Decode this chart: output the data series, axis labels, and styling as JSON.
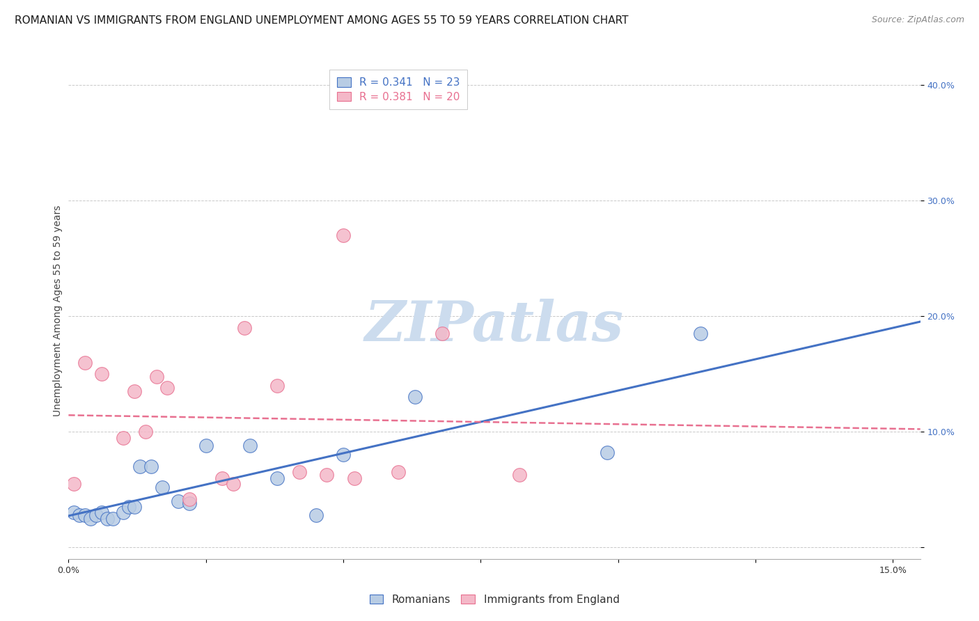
{
  "title": "ROMANIAN VS IMMIGRANTS FROM ENGLAND UNEMPLOYMENT AMONG AGES 55 TO 59 YEARS CORRELATION CHART",
  "source": "Source: ZipAtlas.com",
  "ylabel": "Unemployment Among Ages 55 to 59 years",
  "xlim": [
    0.0,
    0.155
  ],
  "ylim": [
    -0.01,
    0.42
  ],
  "xticks": [
    0.0,
    0.025,
    0.05,
    0.075,
    0.1,
    0.125,
    0.15
  ],
  "yticks": [
    0.0,
    0.1,
    0.2,
    0.3,
    0.4
  ],
  "romanians_x": [
    0.001,
    0.002,
    0.003,
    0.004,
    0.005,
    0.006,
    0.007,
    0.008,
    0.01,
    0.011,
    0.012,
    0.013,
    0.015,
    0.017,
    0.02,
    0.022,
    0.025,
    0.033,
    0.038,
    0.045,
    0.05,
    0.063,
    0.098,
    0.115
  ],
  "romanians_y": [
    0.03,
    0.028,
    0.028,
    0.025,
    0.028,
    0.03,
    0.025,
    0.025,
    0.03,
    0.035,
    0.035,
    0.07,
    0.07,
    0.052,
    0.04,
    0.038,
    0.088,
    0.088,
    0.06,
    0.028,
    0.08,
    0.13,
    0.082,
    0.185
  ],
  "england_x": [
    0.001,
    0.003,
    0.006,
    0.01,
    0.012,
    0.014,
    0.016,
    0.018,
    0.022,
    0.028,
    0.03,
    0.032,
    0.038,
    0.042,
    0.047,
    0.05,
    0.052,
    0.06,
    0.068,
    0.082
  ],
  "england_y": [
    0.055,
    0.16,
    0.15,
    0.095,
    0.135,
    0.1,
    0.148,
    0.138,
    0.042,
    0.06,
    0.055,
    0.19,
    0.14,
    0.065,
    0.063,
    0.27,
    0.06,
    0.065,
    0.185,
    0.063
  ],
  "blue_line_color": "#4472c4",
  "pink_line_color": "#e87090",
  "blue_marker_face": "#b8cce4",
  "blue_marker_edge": "#4472c4",
  "pink_marker_face": "#f4b8c8",
  "pink_marker_edge": "#e87090",
  "tick_color_y": "#4472c4",
  "tick_color_x": "#333333",
  "watermark_color": "#ccdcee",
  "title_fontsize": 11,
  "source_fontsize": 9,
  "axis_label_fontsize": 10,
  "tick_fontsize": 9,
  "legend_fontsize": 11,
  "marker_size": 200
}
